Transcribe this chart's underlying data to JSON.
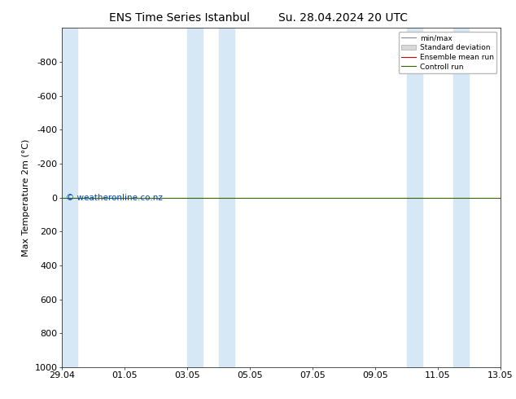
{
  "title_left": "ENS Time Series Istanbul",
  "title_right": "Su. 28.04.2024 20 UTC",
  "ylabel": "Max Temperature 2m (°C)",
  "ylim": [
    1000,
    -1000
  ],
  "yticks": [
    -800,
    -600,
    -400,
    -200,
    0,
    200,
    400,
    600,
    800,
    1000
  ],
  "xtick_labels": [
    "29.04",
    "01.05",
    "03.05",
    "05.05",
    "07.05",
    "09.05",
    "11.05",
    "13.05"
  ],
  "xtick_positions": [
    0,
    2,
    4,
    6,
    8,
    10,
    12,
    14
  ],
  "xlim": [
    0,
    14
  ],
  "shaded_regions": [
    [
      0.0,
      0.5
    ],
    [
      4.0,
      4.5
    ],
    [
      5.0,
      5.5
    ],
    [
      11.0,
      11.5
    ],
    [
      12.5,
      13.0
    ]
  ],
  "shaded_color": "#d6e8f5",
  "control_run_y": 0,
  "control_run_color": "#336600",
  "ensemble_mean_color": "#cc0000",
  "watermark_text": "© weatheronline.co.nz",
  "watermark_color": "#0044bb",
  "background_color": "#ffffff",
  "plot_bg_color": "#ffffff",
  "legend_labels": [
    "min/max",
    "Standard deviation",
    "Ensemble mean run",
    "Controll run"
  ],
  "legend_line_colors": [
    "#888888",
    "#cccccc",
    "#cc0000",
    "#336600"
  ],
  "title_fontsize": 10,
  "axis_label_fontsize": 8,
  "tick_fontsize": 8
}
